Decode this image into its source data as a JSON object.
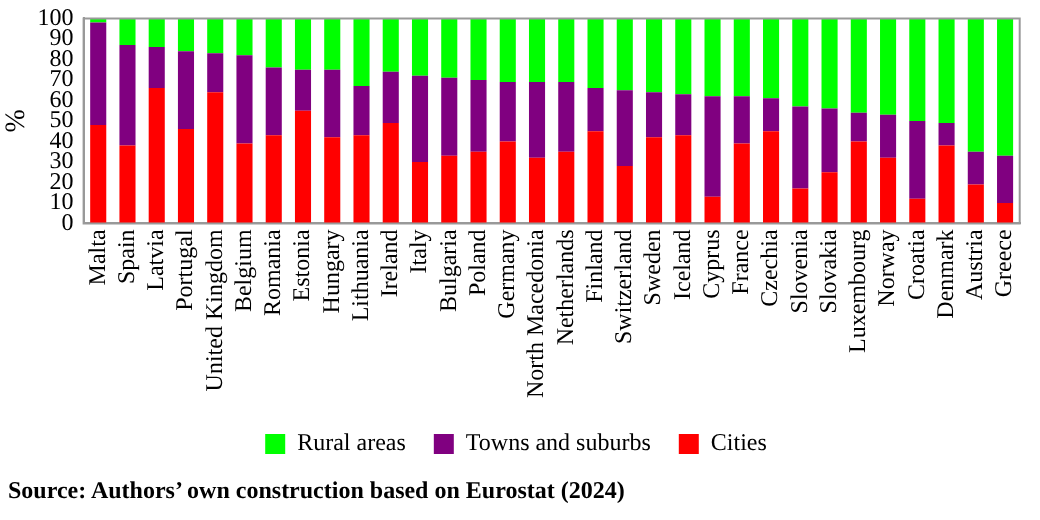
{
  "chart_data": {
    "type": "bar",
    "stacked": true,
    "ylabel": "%",
    "ylim": [
      0,
      100
    ],
    "yticks": [
      0,
      10,
      20,
      30,
      40,
      50,
      60,
      70,
      80,
      90,
      100
    ],
    "grid": false,
    "legend": "bottom",
    "categories": [
      "Malta",
      "Spain",
      "Latvia",
      "Portugal",
      "United Kingdom",
      "Belgium",
      "Romania",
      "Estonia",
      "Hungary",
      "Lithuania",
      "Ireland",
      "Italy",
      "Bulgaria",
      "Poland",
      "Germany",
      "North Macedonia",
      "Netherlands",
      "Finland",
      "Switzerland",
      "Sweden",
      "Iceland",
      "Cyprus",
      "France",
      "Czechia",
      "Slovenia",
      "Slovakia",
      "Luxembourg",
      "Norway",
      "Croatia",
      "Denmark",
      "Austria",
      "Greece"
    ],
    "series": [
      {
        "name": "Cities",
        "color": "#ff0000",
        "values": [
          48,
          38,
          66,
          46,
          64,
          39,
          43,
          55,
          42,
          43,
          49,
          30,
          33,
          35,
          40,
          32,
          35,
          45,
          28,
          42,
          43,
          13,
          39,
          45,
          17,
          25,
          40,
          32,
          12,
          38,
          19,
          10
        ]
      },
      {
        "name": "Towns and suburbs",
        "color": "#800080",
        "values": [
          50,
          49,
          20,
          38,
          19,
          43,
          33,
          20,
          33,
          24,
          25,
          42,
          38,
          35,
          29,
          37,
          34,
          21,
          37,
          22,
          20,
          49,
          23,
          16,
          40,
          31,
          14,
          21,
          38,
          11,
          16,
          23
        ]
      },
      {
        "name": "Rural areas",
        "color": "#00ff00",
        "values": [
          2,
          13,
          14,
          16,
          17,
          18,
          24,
          25,
          25,
          33,
          26,
          28,
          29,
          30,
          31,
          31,
          31,
          34,
          35,
          36,
          37,
          38,
          38,
          39,
          43,
          44,
          46,
          47,
          50,
          51,
          65,
          67
        ]
      }
    ],
    "annotations": [
      "Source: Authors’ own construction based on Eurostat (2024)"
    ]
  }
}
